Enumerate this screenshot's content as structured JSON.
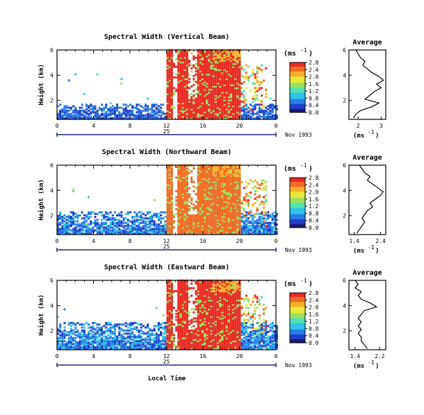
{
  "colorbar_unit": "(ms",
  "colorbar_unit_sup": "-1",
  "colorbar_unit_close": ")",
  "avg_unit": "(ms",
  "avg_unit_sup": "-1",
  "avg_unit_close": ")",
  "date_label": "Nov 1993",
  "day_label": "25",
  "x_axis_label": "Local Time",
  "y_axis_label": "Height (km)",
  "avg_title": "Average",
  "colors": {
    "background": "#ffffff",
    "axis": "#000000",
    "day_bar": "#1a237e",
    "colormap": [
      "#1a1a6e",
      "#1f3fc8",
      "#2a7fe6",
      "#2fc4e8",
      "#52e0b0",
      "#9be060",
      "#e8e83a",
      "#f5b02a",
      "#f06a25",
      "#e82a22"
    ]
  },
  "chart_data": [
    {
      "type": "heatmap",
      "title": "Spectral Width (Vertical Beam)",
      "xlabel": "",
      "ylabel": "Height (km)",
      "x_ticks": [
        "0",
        "4",
        "8",
        "12",
        "16",
        "20",
        "0"
      ],
      "xlim": [
        0,
        24
      ],
      "y_ticks": [
        "2",
        "4",
        "6"
      ],
      "ylim": [
        0.5,
        6
      ],
      "colorbar": {
        "unit": "ms-1",
        "ticks": [
          "0.0",
          "0.4",
          "0.8",
          "1.2",
          "1.6",
          "2.0",
          "2.4",
          "2.8"
        ]
      },
      "regions": [
        {
          "desc": "low-level layer",
          "t": [
            0,
            24
          ],
          "h": [
            0.5,
            1.6
          ],
          "level": 0.35
        },
        {
          "desc": "convective band",
          "t": [
            12,
            20
          ],
          "h": [
            0.5,
            6
          ],
          "level": 2.8
        }
      ],
      "average": {
        "xlim": [
          1.6,
          3.2
        ],
        "x_ticks": [
          "2",
          "3"
        ],
        "ylim": [
          0.5,
          6
        ],
        "y_ticks": [
          "2",
          "4",
          "6"
        ],
        "profile": [
          [
            1.8,
            0.6
          ],
          [
            1.9,
            0.9
          ],
          [
            2.1,
            1.2
          ],
          [
            2.6,
            1.5
          ],
          [
            2.9,
            1.8
          ],
          [
            2.3,
            2.1
          ],
          [
            2.5,
            2.4
          ],
          [
            2.7,
            2.7
          ],
          [
            3.0,
            3.0
          ],
          [
            2.8,
            3.3
          ],
          [
            3.1,
            3.6
          ],
          [
            2.9,
            3.9
          ],
          [
            2.6,
            4.2
          ],
          [
            2.4,
            4.5
          ],
          [
            2.2,
            4.8
          ],
          [
            2.3,
            5.1
          ],
          [
            2.1,
            5.4
          ],
          [
            2.0,
            5.7
          ],
          [
            1.9,
            6.0
          ]
        ]
      }
    },
    {
      "type": "heatmap",
      "title": "Spectral Width (Northward Beam)",
      "xlabel": "",
      "ylabel": "Height (km)",
      "x_ticks": [
        "0",
        "4",
        "8",
        "12",
        "16",
        "20",
        "0"
      ],
      "xlim": [
        0,
        24
      ],
      "y_ticks": [
        "2",
        "4",
        "6"
      ],
      "ylim": [
        0.5,
        6
      ],
      "colorbar": {
        "unit": "ms-1",
        "ticks": [
          "0.0",
          "0.4",
          "0.8",
          "1.2",
          "1.6",
          "2.0",
          "2.4",
          "2.8"
        ]
      },
      "regions": [
        {
          "desc": "low-level layer",
          "t": [
            0,
            24
          ],
          "h": [
            0.5,
            2.2
          ],
          "level": 0.45
        },
        {
          "desc": "convective band",
          "t": [
            12,
            20
          ],
          "h": [
            0.5,
            6
          ],
          "level": 2.6
        }
      ],
      "average": {
        "xlim": [
          1.2,
          2.6
        ],
        "x_ticks": [
          "1.4",
          "2.4"
        ],
        "ylim": [
          0.5,
          6
        ],
        "y_ticks": [
          "2",
          "4",
          "6"
        ],
        "profile": [
          [
            1.5,
            0.6
          ],
          [
            1.6,
            0.9
          ],
          [
            1.7,
            1.2
          ],
          [
            1.8,
            1.5
          ],
          [
            1.7,
            1.8
          ],
          [
            1.8,
            2.1
          ],
          [
            1.9,
            2.4
          ],
          [
            2.1,
            2.7
          ],
          [
            2.0,
            3.0
          ],
          [
            2.2,
            3.3
          ],
          [
            2.4,
            3.6
          ],
          [
            2.5,
            3.9
          ],
          [
            2.3,
            4.2
          ],
          [
            2.1,
            4.5
          ],
          [
            1.9,
            4.8
          ],
          [
            2.0,
            5.1
          ],
          [
            1.8,
            5.4
          ],
          [
            1.7,
            5.7
          ],
          [
            1.6,
            6.0
          ]
        ]
      }
    },
    {
      "type": "heatmap",
      "title": "Spectral Width (Eastward Beam)",
      "xlabel": "Local Time",
      "ylabel": "Height (km)",
      "x_ticks": [
        "0",
        "4",
        "8",
        "12",
        "16",
        "20",
        "0"
      ],
      "xlim": [
        0,
        24
      ],
      "y_ticks": [
        "2",
        "4",
        "6"
      ],
      "ylim": [
        0.5,
        6
      ],
      "colorbar": {
        "unit": "ms-1",
        "ticks": [
          "0.0",
          "0.4",
          "0.8",
          "1.2",
          "1.6",
          "2.0",
          "2.4",
          "2.8"
        ]
      },
      "regions": [
        {
          "desc": "low-level layer",
          "t": [
            0,
            24
          ],
          "h": [
            0.5,
            2.6
          ],
          "level": 0.5
        },
        {
          "desc": "convective band",
          "t": [
            12,
            20
          ],
          "h": [
            0.5,
            6
          ],
          "level": 2.7
        }
      ],
      "average": {
        "xlim": [
          1.2,
          2.4
        ],
        "x_ticks": [
          "1.4",
          "2.2"
        ],
        "ylim": [
          0.5,
          6
        ],
        "y_ticks": [
          "2",
          "4",
          "6"
        ],
        "profile": [
          [
            1.8,
            0.6
          ],
          [
            1.7,
            0.9
          ],
          [
            1.6,
            1.2
          ],
          [
            1.6,
            1.5
          ],
          [
            1.5,
            1.8
          ],
          [
            1.6,
            2.1
          ],
          [
            1.5,
            2.4
          ],
          [
            1.6,
            2.7
          ],
          [
            1.5,
            3.0
          ],
          [
            1.6,
            3.3
          ],
          [
            1.7,
            3.6
          ],
          [
            2.1,
            3.9
          ],
          [
            1.9,
            4.2
          ],
          [
            1.6,
            4.5
          ],
          [
            1.5,
            4.8
          ],
          [
            1.6,
            5.1
          ],
          [
            1.4,
            5.4
          ],
          [
            1.5,
            5.7
          ],
          [
            1.4,
            6.0
          ]
        ]
      }
    }
  ]
}
